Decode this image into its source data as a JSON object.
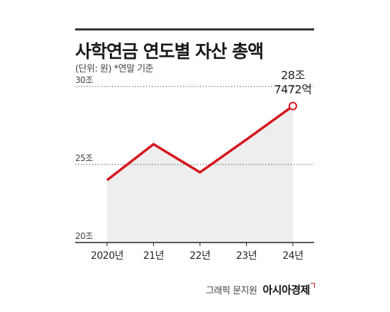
{
  "header": {
    "title": "사학연금 연도별 자산 총액",
    "subtitle": "(단위: 원) *연말 기준"
  },
  "footer": {
    "credit": "그래픽 문지원",
    "brand": "아시아경제"
  },
  "chart_data": {
    "type": "area",
    "x": [
      "2020년",
      "21년",
      "22년",
      "23년",
      "24년"
    ],
    "values": [
      24.0,
      26.3,
      24.5,
      26.6,
      28.7472
    ],
    "ylim": [
      20,
      30
    ],
    "y_ticks": [
      20,
      25,
      30
    ],
    "y_tick_labels": [
      "20조",
      "25조",
      "30조"
    ],
    "grid": "dotted",
    "highlight": {
      "index": 4,
      "label_line1": "28조",
      "label_line2": "7472억"
    },
    "colors": {
      "line": "#d6161d",
      "area": "#eeeeee",
      "grid": "#555555"
    }
  }
}
